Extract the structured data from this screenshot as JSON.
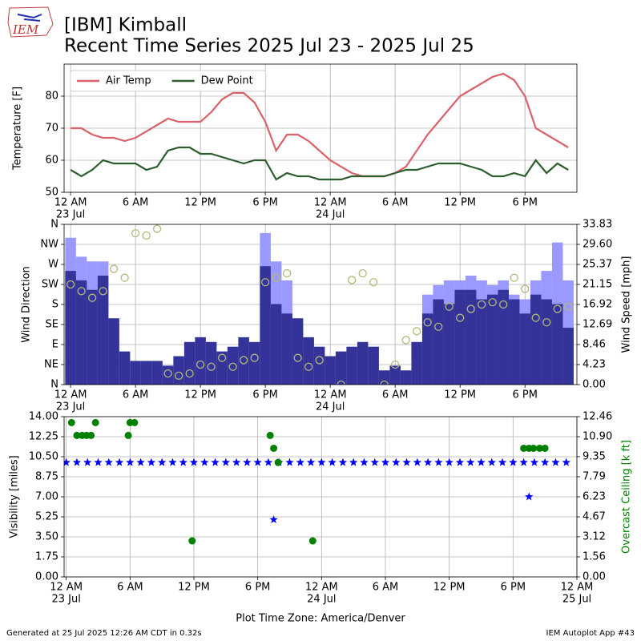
{
  "logo": "IEM",
  "title": "[IBM] Kimball",
  "subtitle": "Recent Time Series 2025 Jul 23 - 2025 Jul 25",
  "xlabel": "Plot Time Zone: America/Denver",
  "footer_left": "Generated at 25 Jul 2025 12:26 AM CDT in 0.32s",
  "footer_right": "IEM Autoplot App #43",
  "chart_data": [
    {
      "type": "line",
      "ylabel": "Temperature [F]",
      "legend": "upper left",
      "grid": true,
      "xlim": [
        "2025-07-22T23:24",
        "2025-07-24T22:48"
      ],
      "xticks": [
        {
          "value": "2025-07-23T00:00",
          "label": "12 AM"
        },
        {
          "value": "2025-07-23T06:00",
          "label": "6 AM"
        },
        {
          "value": "2025-07-23T12:00",
          "label": "12 PM"
        },
        {
          "value": "2025-07-23T18:00",
          "label": "6 PM"
        },
        {
          "value": "2025-07-24T00:00",
          "label": "12 AM"
        },
        {
          "value": "2025-07-24T06:00",
          "label": "6 AM"
        },
        {
          "value": "2025-07-24T12:00",
          "label": "12 PM"
        },
        {
          "value": "2025-07-24T18:00",
          "label": "6 PM"
        }
      ],
      "xtick_dates": [
        {
          "value": "2025-07-23T00:00",
          "label": "23 Jul"
        },
        {
          "value": "2025-07-24T00:00",
          "label": "24 Jul"
        }
      ],
      "ylim": [
        50,
        90
      ],
      "yticks": [
        50,
        60,
        70,
        80
      ],
      "x": [
        "2025-07-23T00:00",
        "2025-07-23T01:00",
        "2025-07-23T02:00",
        "2025-07-23T03:00",
        "2025-07-23T04:00",
        "2025-07-23T05:00",
        "2025-07-23T06:00",
        "2025-07-23T07:00",
        "2025-07-23T08:00",
        "2025-07-23T09:00",
        "2025-07-23T10:00",
        "2025-07-23T11:00",
        "2025-07-23T12:00",
        "2025-07-23T13:00",
        "2025-07-23T14:00",
        "2025-07-23T15:00",
        "2025-07-23T16:00",
        "2025-07-23T17:00",
        "2025-07-23T18:00",
        "2025-07-23T19:00",
        "2025-07-23T20:00",
        "2025-07-23T21:00",
        "2025-07-23T22:00",
        "2025-07-23T23:00",
        "2025-07-24T00:00",
        "2025-07-24T01:00",
        "2025-07-24T02:00",
        "2025-07-24T03:00",
        "2025-07-24T04:00",
        "2025-07-24T05:00",
        "2025-07-24T06:00",
        "2025-07-24T07:00",
        "2025-07-24T08:00",
        "2025-07-24T09:00",
        "2025-07-24T10:00",
        "2025-07-24T11:00",
        "2025-07-24T12:00",
        "2025-07-24T13:00",
        "2025-07-24T14:00",
        "2025-07-24T15:00",
        "2025-07-24T16:00",
        "2025-07-24T17:00",
        "2025-07-24T18:00",
        "2025-07-24T19:00",
        "2025-07-24T20:00",
        "2025-07-24T21:00",
        "2025-07-24T22:00"
      ],
      "series": [
        {
          "name": "Air Temp",
          "color": "#d9626b",
          "values": [
            70,
            70,
            68,
            67,
            67,
            66,
            67,
            69,
            71,
            73,
            72,
            72,
            72,
            75,
            79,
            81,
            81,
            78,
            72,
            63,
            68,
            68,
            66,
            63,
            60,
            58,
            56,
            55,
            55,
            55,
            56,
            58,
            63,
            68,
            72,
            76,
            80,
            82,
            84,
            86,
            87,
            85,
            80,
            70,
            68,
            66,
            64
          ]
        },
        {
          "name": "Dew Point",
          "color": "#2e5e2e",
          "values": [
            57,
            55,
            57,
            60,
            59,
            59,
            59,
            57,
            58,
            63,
            64,
            64,
            62,
            62,
            61,
            60,
            59,
            60,
            60,
            54,
            56,
            55,
            55,
            54,
            54,
            54,
            55,
            55,
            55,
            55,
            56,
            57,
            57,
            58,
            59,
            59,
            59,
            58,
            57,
            55,
            55,
            56,
            55,
            60,
            56,
            59,
            57
          ]
        }
      ]
    },
    {
      "type": "bar",
      "ylabel": "Wind Direction",
      "y2label": "Wind Speed [mph]",
      "grid": true,
      "xlim": [
        "2025-07-22T23:24",
        "2025-07-24T22:48"
      ],
      "xticks": [
        {
          "value": "2025-07-23T00:00",
          "label": "12 AM"
        },
        {
          "value": "2025-07-23T06:00",
          "label": "6 AM"
        },
        {
          "value": "2025-07-23T12:00",
          "label": "12 PM"
        },
        {
          "value": "2025-07-23T18:00",
          "label": "6 PM"
        },
        {
          "value": "2025-07-24T00:00",
          "label": "12 AM"
        },
        {
          "value": "2025-07-24T06:00",
          "label": "6 AM"
        },
        {
          "value": "2025-07-24T12:00",
          "label": "12 PM"
        },
        {
          "value": "2025-07-24T18:00",
          "label": "6 PM"
        }
      ],
      "xtick_dates": [
        {
          "value": "2025-07-23T00:00",
          "label": "23 Jul"
        },
        {
          "value": "2025-07-24T00:00",
          "label": "24 Jul"
        }
      ],
      "ylim": [
        0,
        360
      ],
      "yticks": [
        {
          "value": 0,
          "label": "N"
        },
        {
          "value": 45,
          "label": "NE"
        },
        {
          "value": 90,
          "label": "E"
        },
        {
          "value": 135,
          "label": "SE"
        },
        {
          "value": 180,
          "label": "S"
        },
        {
          "value": 225,
          "label": "SW"
        },
        {
          "value": 270,
          "label": "W"
        },
        {
          "value": 315,
          "label": "NW"
        },
        {
          "value": 360,
          "label": "N"
        }
      ],
      "y2lim": [
        0,
        33.83
      ],
      "y2ticks": [
        {
          "value": 0,
          "label": "0.00"
        },
        4.23,
        8.46,
        12.69,
        16.92,
        21.15,
        25.37,
        {
          "value": 29.6,
          "label": "29.60"
        },
        33.83
      ],
      "x": [
        "2025-07-23T00:00",
        "2025-07-23T01:00",
        "2025-07-23T02:00",
        "2025-07-23T03:00",
        "2025-07-23T04:00",
        "2025-07-23T05:00",
        "2025-07-23T06:00",
        "2025-07-23T07:00",
        "2025-07-23T08:00",
        "2025-07-23T09:00",
        "2025-07-23T10:00",
        "2025-07-23T11:00",
        "2025-07-23T12:00",
        "2025-07-23T13:00",
        "2025-07-23T14:00",
        "2025-07-23T15:00",
        "2025-07-23T16:00",
        "2025-07-23T17:00",
        "2025-07-23T18:00",
        "2025-07-23T19:00",
        "2025-07-23T20:00",
        "2025-07-23T21:00",
        "2025-07-23T22:00",
        "2025-07-23T23:00",
        "2025-07-24T00:00",
        "2025-07-24T01:00",
        "2025-07-24T02:00",
        "2025-07-24T03:00",
        "2025-07-24T04:00",
        "2025-07-24T05:00",
        "2025-07-24T06:00",
        "2025-07-24T07:00",
        "2025-07-24T08:00",
        "2025-07-24T09:00",
        "2025-07-24T10:00",
        "2025-07-24T11:00",
        "2025-07-24T12:00",
        "2025-07-24T13:00",
        "2025-07-24T14:00",
        "2025-07-24T15:00",
        "2025-07-24T16:00",
        "2025-07-24T17:00",
        "2025-07-24T18:00",
        "2025-07-24T19:00",
        "2025-07-24T20:00",
        "2025-07-24T21:00",
        "2025-07-24T22:00"
      ],
      "series": [
        {
          "type": "bar",
          "axis": "y2",
          "color": "#9999ff",
          "values": [
            31,
            27,
            26,
            26,
            null,
            null,
            null,
            null,
            null,
            null,
            null,
            null,
            null,
            null,
            null,
            null,
            null,
            null,
            32,
            26,
            22,
            null,
            null,
            null,
            null,
            null,
            null,
            null,
            null,
            null,
            null,
            null,
            null,
            19,
            21,
            22,
            22,
            23,
            22,
            21,
            22,
            19,
            18,
            22,
            24,
            30,
            22
          ]
        },
        {
          "type": "bar",
          "axis": "y2",
          "color": "#333399",
          "values": [
            24,
            22,
            20,
            23,
            14,
            7,
            5,
            5,
            5,
            4,
            6,
            9,
            10,
            9,
            7,
            8,
            10,
            9,
            25,
            17,
            15,
            14,
            10,
            8,
            6,
            7,
            8,
            9,
            8,
            3,
            4,
            3,
            9,
            15,
            18,
            17,
            20,
            20,
            18,
            19,
            20,
            18,
            15,
            19,
            18,
            17,
            12
          ]
        },
        {
          "type": "scatter",
          "marker": "o",
          "color": "#b5b87a",
          "values": [
            225,
            210,
            195,
            210,
            260,
            240,
            340,
            335,
            350,
            25,
            20,
            25,
            45,
            40,
            60,
            40,
            55,
            60,
            230,
            240,
            250,
            60,
            40,
            55,
            null,
            0,
            235,
            250,
            230,
            0,
            45,
            100,
            120,
            140,
            130,
            175,
            150,
            170,
            180,
            185,
            180,
            240,
            215,
            150,
            140,
            170,
            175
          ]
        }
      ]
    },
    {
      "type": "scatter",
      "ylabel": "Visibility [miles]",
      "y2label": "Overcast Ceiling [k ft]",
      "y2color": "#008000",
      "grid": true,
      "xlim": [
        "2025-07-22T23:48",
        "2025-07-25T00:00"
      ],
      "xticks": [
        {
          "value": "2025-07-23T00:00",
          "label": "12 AM"
        },
        {
          "value": "2025-07-23T06:00",
          "label": "6 AM"
        },
        {
          "value": "2025-07-23T12:00",
          "label": "12 PM"
        },
        {
          "value": "2025-07-23T18:00",
          "label": "6 PM"
        },
        {
          "value": "2025-07-24T00:00",
          "label": "12 AM"
        },
        {
          "value": "2025-07-24T06:00",
          "label": "6 AM"
        },
        {
          "value": "2025-07-24T12:00",
          "label": "12 PM"
        },
        {
          "value": "2025-07-24T18:00",
          "label": "6 PM"
        },
        {
          "value": "2025-07-25T00:00",
          "label": "12 AM"
        }
      ],
      "xtick_dates": [
        {
          "value": "2025-07-23T00:00",
          "label": "23 Jul"
        },
        {
          "value": "2025-07-24T00:00",
          "label": "24 Jul"
        },
        {
          "value": "2025-07-25T00:00",
          "label": "25 Jul"
        }
      ],
      "ylim": [
        0,
        14
      ],
      "yticks": [
        {
          "value": 0,
          "label": "0.00"
        },
        1.75,
        {
          "value": 3.5,
          "label": "3.50"
        },
        5.25,
        {
          "value": 7,
          "label": "7.00"
        },
        8.75,
        {
          "value": 10.5,
          "label": "10.50"
        },
        12.25,
        {
          "value": 14,
          "label": "14.00"
        }
      ],
      "y2lim": [
        0,
        12.46
      ],
      "y2ticks": [
        {
          "value": 0,
          "label": "0.00"
        },
        1.56,
        3.12,
        4.67,
        6.23,
        7.79,
        9.35,
        {
          "value": 10.9,
          "label": "10.90"
        },
        12.46
      ],
      "series": [
        {
          "marker": "*",
          "color": "#0000ff",
          "x": [
            "2025-07-23T00:00",
            "2025-07-23T01:00",
            "2025-07-23T02:00",
            "2025-07-23T03:00",
            "2025-07-23T04:00",
            "2025-07-23T05:00",
            "2025-07-23T06:00",
            "2025-07-23T07:00",
            "2025-07-23T08:00",
            "2025-07-23T09:00",
            "2025-07-23T10:00",
            "2025-07-23T11:00",
            "2025-07-23T12:00",
            "2025-07-23T13:00",
            "2025-07-23T14:00",
            "2025-07-23T15:00",
            "2025-07-23T16:00",
            "2025-07-23T17:00",
            "2025-07-23T18:00",
            "2025-07-23T19:00",
            "2025-07-23T19:30",
            "2025-07-23T20:00",
            "2025-07-23T21:00",
            "2025-07-23T22:00",
            "2025-07-23T23:00",
            "2025-07-24T00:00",
            "2025-07-24T01:00",
            "2025-07-24T02:00",
            "2025-07-24T03:00",
            "2025-07-24T04:00",
            "2025-07-24T05:00",
            "2025-07-24T06:00",
            "2025-07-24T07:00",
            "2025-07-24T08:00",
            "2025-07-24T09:00",
            "2025-07-24T10:00",
            "2025-07-24T11:00",
            "2025-07-24T12:00",
            "2025-07-24T13:00",
            "2025-07-24T14:00",
            "2025-07-24T15:00",
            "2025-07-24T16:00",
            "2025-07-24T17:00",
            "2025-07-24T18:00",
            "2025-07-24T19:00",
            "2025-07-24T19:30",
            "2025-07-24T20:00",
            "2025-07-24T21:00",
            "2025-07-24T22:00",
            "2025-07-24T23:00"
          ],
          "values": [
            10,
            10,
            10,
            10,
            10,
            10,
            10,
            10,
            10,
            10,
            10,
            10,
            10,
            10,
            10,
            10,
            10,
            10,
            10,
            10,
            5,
            10,
            10,
            10,
            10,
            10,
            10,
            10,
            10,
            10,
            10,
            10,
            10,
            10,
            10,
            10,
            10,
            10,
            10,
            10,
            10,
            10,
            10,
            10,
            10,
            7,
            10,
            10,
            10,
            10
          ]
        },
        {
          "marker": "o",
          "axis": "y2",
          "color": "#008000",
          "x": [
            "2025-07-23T00:30",
            "2025-07-23T01:00",
            "2025-07-23T01:30",
            "2025-07-23T01:55",
            "2025-07-23T02:20",
            "2025-07-23T02:45",
            "2025-07-23T05:50",
            "2025-07-23T06:00",
            "2025-07-23T06:25",
            "2025-07-23T11:50",
            "2025-07-23T19:10",
            "2025-07-23T19:30",
            "2025-07-23T19:55",
            "2025-07-23T23:10",
            "2025-07-24T19:00",
            "2025-07-24T19:30",
            "2025-07-24T19:55",
            "2025-07-24T20:30",
            "2025-07-24T21:00"
          ],
          "values": [
            12.0,
            11.0,
            11.0,
            11.0,
            11.0,
            12.0,
            11.0,
            12.0,
            12.0,
            2.8,
            11.0,
            10.0,
            8.9,
            2.8,
            10.0,
            10.0,
            10.0,
            10.0,
            10.0
          ]
        }
      ]
    }
  ]
}
